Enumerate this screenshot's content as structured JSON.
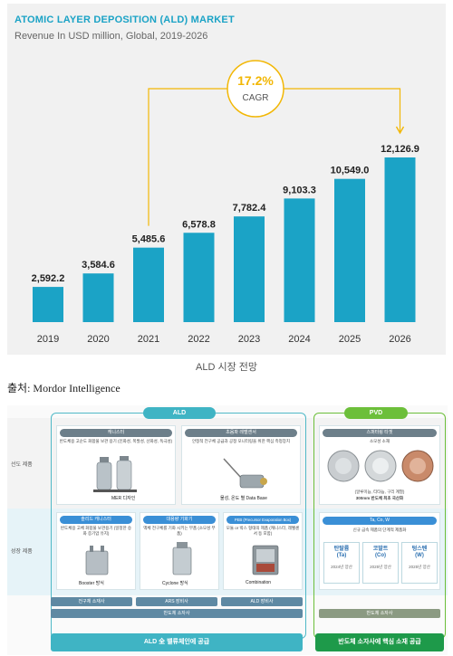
{
  "chart_data": {
    "type": "bar",
    "title": "ATOMIC LAYER DEPOSITION (ALD) MARKET",
    "subtitle": "Revenue In USD million, Global, 2019-2026",
    "categories": [
      "2019",
      "2020",
      "2021",
      "2022",
      "2023",
      "2024",
      "2025",
      "2026"
    ],
    "values": [
      2592.2,
      3584.6,
      5485.6,
      6578.8,
      7782.4,
      9103.3,
      10549.0,
      12126.9
    ],
    "value_labels": [
      "2,592.2",
      "3,584.6",
      "5,485.6",
      "6,578.8",
      "7,782.4",
      "9,103.3",
      "10,549.0",
      "12,126.9"
    ],
    "cagr_value": "17.2%",
    "cagr_label": "CAGR",
    "bar_color": "#1ba3c6",
    "accent_color": "#f2b705",
    "grid": false,
    "legend": "none"
  },
  "caption": "ALD 시장 전망",
  "source": "출처: Mordor Intelligence",
  "diagram": {
    "rows": {
      "leading": "선도 제품",
      "growth": "성장 제품"
    },
    "ald": {
      "title": "ALD",
      "canister": {
        "head": "캐니스터",
        "desc": "반도체용 고순도 화합물 보관 용기 (인화성, 폭발성, 산화성, 독극성)",
        "caption": "MER 디자인"
      },
      "sensor": {
        "head": "초음파 레벨센서",
        "desc": "안정적 전구체 공급과 공정 모니터링을 위한 핵심 측정장치",
        "caption": "물성, 온도 별 Data Base"
      },
      "solid": {
        "head": "솔리드 캐니스터",
        "desc": "반도체용 고체 화합물 보관용기 (일정한 승화 증기압 유지)",
        "caption": "Booster 방식"
      },
      "vaporizer": {
        "head": "대용량 기화기",
        "desc": "액체 전구체를 기화 시키는 부품 (소모성 부품)",
        "caption": "Cyclone 방식"
      },
      "peb": {
        "head": "PEB (Precursor Evaporation Box)",
        "desc": "모듈 or 박스 형태의 제품 (캐니스터, 레벨센서 등 포함)",
        "caption": "Combination"
      },
      "strips": [
        "전구체 소재사",
        "ARS 장비사",
        "ALD 장비사"
      ],
      "strip_wide": "반도체 소자사",
      "banner": "ALD 全 밸류체인에 공급"
    },
    "pvd": {
      "title": "PVD",
      "target": {
        "head": "스퍼터링 타겟",
        "sub": "소모성 소재",
        "desc": "(알루미늄, 티타늄, 구리 계열)",
        "desc2": "300mm 반도체 최초 국산화"
      },
      "new_metal": {
        "head": "Ta, Co, W",
        "desc": "신규 금속 제품의 단계적 제품화"
      },
      "materials": [
        {
          "name": "탄탈륨",
          "symbol": "(Ta)",
          "year": "2024년 양산"
        },
        {
          "name": "코발트",
          "symbol": "(Co)",
          "year": "2025년 양산"
        },
        {
          "name": "텅스텐",
          "symbol": "(W)",
          "year": "2025년 양산"
        }
      ],
      "strip": "반도체 소자사",
      "banner": "반도체 소자사에 핵심 소재 공급"
    },
    "colors": {
      "ald_teal": "#3fb4c4",
      "ald_blue": "#3a8fd6",
      "pvd_green": "#6cbf3a",
      "banner_green": "#1e9a4a",
      "strip_gray": "#5f89a3"
    }
  }
}
